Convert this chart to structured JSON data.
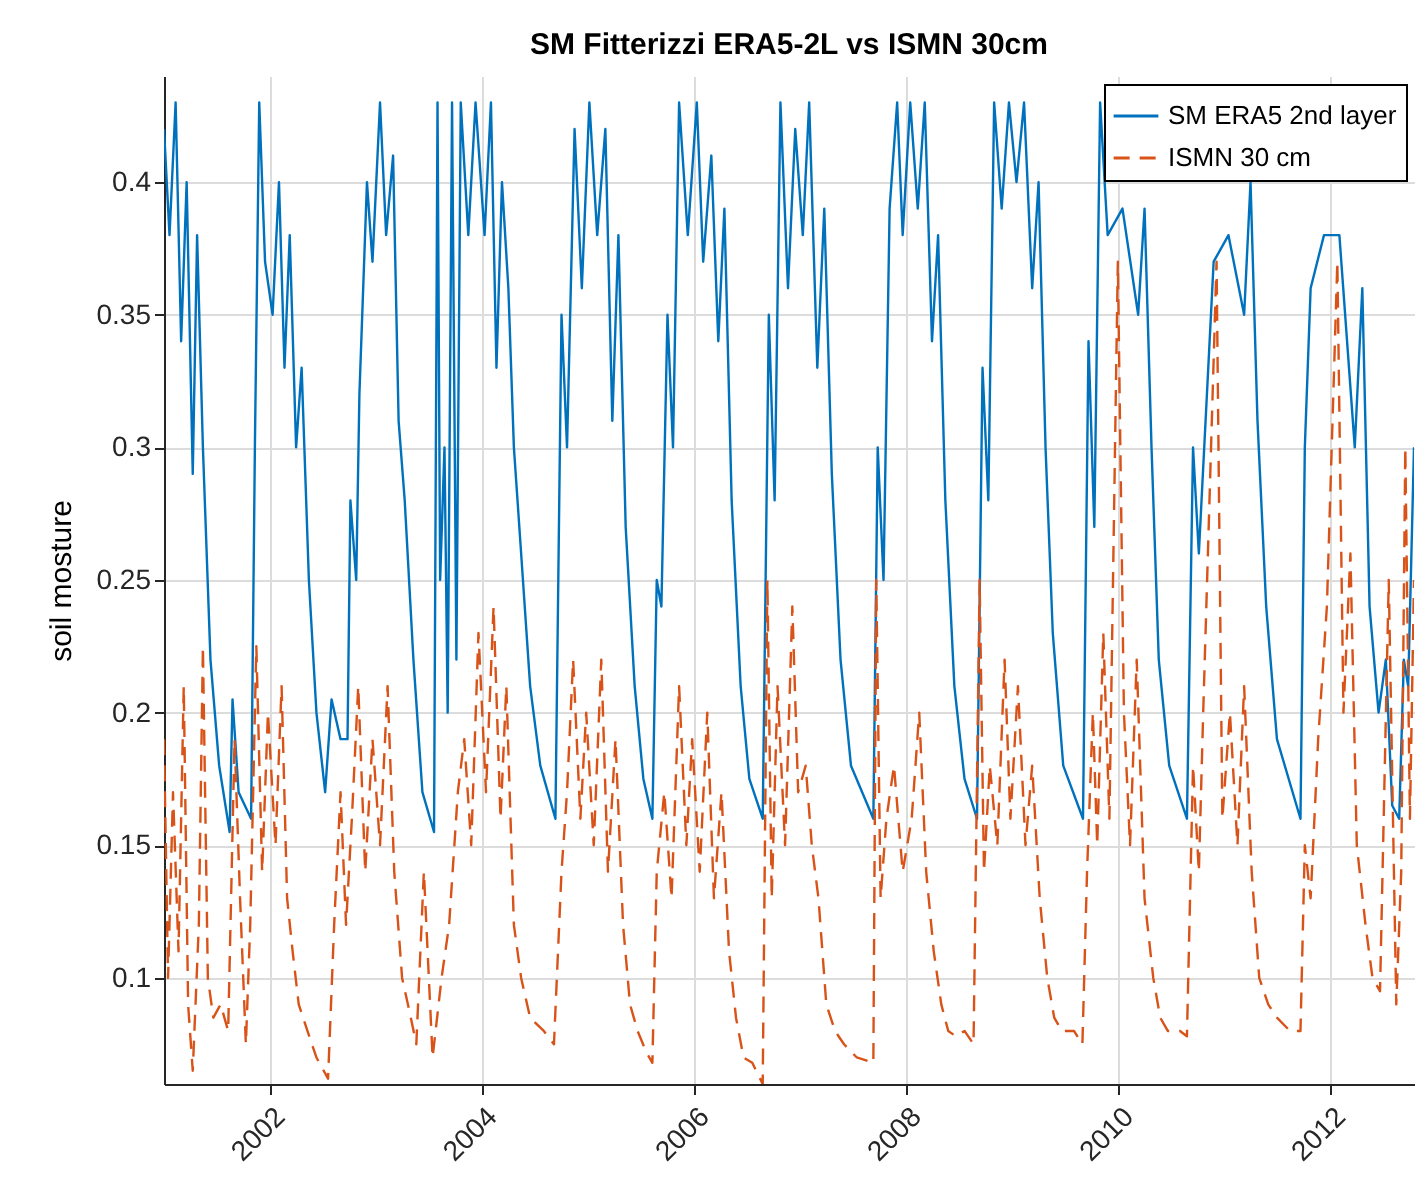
{
  "chart_data": {
    "type": "line",
    "title": "SM Fitterizzi ERA5-2L vs ISMN 30cm",
    "ylabel": "soil mosture",
    "xlim": [
      "2001-01-01",
      "2012-10-15"
    ],
    "xticks": [
      "2002",
      "2004",
      "2006",
      "2008",
      "2010",
      "2012"
    ],
    "ylim": [
      0.06,
      0.44
    ],
    "yticks": [
      0.1,
      0.15,
      0.2,
      0.25,
      0.3,
      0.35,
      0.4
    ],
    "grid": true,
    "legend": "top right",
    "series": [
      {
        "name": "SM ERA5 2nd layer",
        "color": "#0072bd",
        "line_style": "solid",
        "x": [
          "2001-01-01",
          "2001-01-20",
          "2001-02-10",
          "2001-03-01",
          "2001-03-20",
          "2001-04-10",
          "2001-04-25",
          "2001-05-15",
          "2001-06-10",
          "2001-07-10",
          "2001-08-15",
          "2001-08-25",
          "2001-09-15",
          "2001-10-28",
          "2001-11-10",
          "2001-11-25",
          "2001-12-15",
          "2002-01-10",
          "2002-02-01",
          "2002-02-20",
          "2002-03-10",
          "2002-04-01",
          "2002-04-20",
          "2002-05-15",
          "2002-06-10",
          "2002-07-10",
          "2002-08-01",
          "2002-09-01",
          "2002-09-25",
          "2002-10-05",
          "2002-10-25",
          "2002-11-05",
          "2002-12-01",
          "2002-12-20",
          "2003-01-15",
          "2003-02-05",
          "2003-03-01",
          "2003-03-20",
          "2003-04-10",
          "2003-05-10",
          "2003-06-10",
          "2003-07-20",
          "2003-08-01",
          "2003-08-10",
          "2003-08-25",
          "2003-09-05",
          "2003-09-20",
          "2003-10-05",
          "2003-10-20",
          "2003-11-15",
          "2003-12-10",
          "2004-01-10",
          "2004-02-01",
          "2004-02-20",
          "2004-03-10",
          "2004-04-01",
          "2004-04-20",
          "2004-05-15",
          "2004-06-15",
          "2004-07-20",
          "2004-09-10",
          "2004-10-01",
          "2004-10-20",
          "2004-11-15",
          "2004-12-10",
          "2005-01-05",
          "2005-02-01",
          "2005-03-01",
          "2005-03-25",
          "2005-04-15",
          "2005-05-10",
          "2005-06-10",
          "2005-07-10",
          "2005-08-10",
          "2005-08-25",
          "2005-09-10",
          "2005-10-01",
          "2005-10-20",
          "2005-11-10",
          "2005-12-10",
          "2006-01-10",
          "2006-02-01",
          "2006-03-01",
          "2006-03-25",
          "2006-04-15",
          "2006-05-10",
          "2006-06-10",
          "2006-07-10",
          "2006-08-25",
          "2006-09-15",
          "2006-10-05",
          "2006-10-25",
          "2006-11-20",
          "2006-12-15",
          "2007-01-10",
          "2007-02-01",
          "2007-03-01",
          "2007-03-25",
          "2007-04-20",
          "2007-05-20",
          "2007-06-25",
          "2007-09-10",
          "2007-09-25",
          "2007-10-15",
          "2007-11-05",
          "2007-12-01",
          "2007-12-20",
          "2008-01-15",
          "2008-02-10",
          "2008-03-05",
          "2008-03-30",
          "2008-04-20",
          "2008-05-15",
          "2008-06-15",
          "2008-07-20",
          "2008-09-01",
          "2008-09-20",
          "2008-10-10",
          "2008-10-30",
          "2008-11-25",
          "2008-12-20",
          "2009-01-15",
          "2009-02-10",
          "2009-03-10",
          "2009-04-01",
          "2009-04-25",
          "2009-05-20",
          "2009-06-25",
          "2009-09-01",
          "2009-09-20",
          "2009-10-10",
          "2009-10-30",
          "2009-11-25",
          "2009-12-20",
          "2010-01-15",
          "2010-02-10",
          "2010-03-10",
          "2010-04-01",
          "2010-04-25",
          "2010-05-20",
          "2010-06-25",
          "2010-08-25",
          "2010-09-15",
          "2010-10-05",
          "2010-10-30",
          "2010-11-25",
          "2010-12-20",
          "2011-01-15",
          "2011-02-10",
          "2011-03-10",
          "2011-04-01",
          "2011-04-25",
          "2011-05-25",
          "2011-07-01",
          "2011-09-20",
          "2011-10-05",
          "2011-10-25",
          "2011-11-15",
          "2011-12-10",
          "2012-01-05",
          "2012-02-01",
          "2012-03-01",
          "2012-03-25",
          "2012-04-20",
          "2012-05-15",
          "2012-06-15",
          "2012-07-10",
          "2012-08-01",
          "2012-08-25",
          "2012-09-10",
          "2012-09-25",
          "2012-10-15"
        ],
        "values": [
          0.42,
          0.38,
          0.43,
          0.34,
          0.4,
          0.29,
          0.38,
          0.3,
          0.22,
          0.18,
          0.155,
          0.205,
          0.17,
          0.16,
          0.3,
          0.43,
          0.37,
          0.35,
          0.4,
          0.33,
          0.38,
          0.3,
          0.33,
          0.25,
          0.2,
          0.17,
          0.205,
          0.19,
          0.19,
          0.28,
          0.25,
          0.32,
          0.4,
          0.37,
          0.43,
          0.38,
          0.41,
          0.31,
          0.28,
          0.22,
          0.17,
          0.155,
          0.43,
          0.25,
          0.3,
          0.2,
          0.43,
          0.22,
          0.43,
          0.38,
          0.43,
          0.38,
          0.43,
          0.33,
          0.4,
          0.36,
          0.3,
          0.26,
          0.21,
          0.18,
          0.16,
          0.35,
          0.3,
          0.42,
          0.36,
          0.43,
          0.38,
          0.42,
          0.31,
          0.38,
          0.27,
          0.21,
          0.175,
          0.16,
          0.25,
          0.24,
          0.35,
          0.3,
          0.43,
          0.38,
          0.43,
          0.37,
          0.41,
          0.34,
          0.39,
          0.28,
          0.21,
          0.175,
          0.16,
          0.35,
          0.28,
          0.43,
          0.36,
          0.42,
          0.38,
          0.43,
          0.33,
          0.39,
          0.29,
          0.22,
          0.18,
          0.16,
          0.3,
          0.25,
          0.39,
          0.43,
          0.38,
          0.43,
          0.39,
          0.43,
          0.34,
          0.38,
          0.28,
          0.21,
          0.175,
          0.16,
          0.33,
          0.28,
          0.43,
          0.39,
          0.43,
          0.4,
          0.43,
          0.36,
          0.4,
          0.3,
          0.23,
          0.18,
          0.16,
          0.34,
          0.27,
          0.43,
          0.38,
          null,
          0.39,
          null,
          0.35,
          0.39,
          0.3,
          0.22,
          0.18,
          0.16,
          0.3,
          0.26,
          null,
          0.37,
          null,
          0.38,
          null,
          0.35,
          0.4,
          0.31,
          0.24,
          0.19,
          0.16,
          0.3,
          0.36,
          null,
          0.38,
          null,
          0.38,
          null,
          0.3,
          0.36,
          0.24,
          0.2,
          0.22,
          0.165,
          0.16,
          0.22,
          0.21,
          0.3
        ]
      },
      {
        "name": "ISMN 30 cm",
        "color": "#d95319",
        "line_style": "dashed",
        "x": [
          "2001-01-01",
          "2001-01-15",
          "2001-02-01",
          "2001-02-20",
          "2001-03-10",
          "2001-03-25",
          "2001-04-10",
          "2001-05-01",
          "2001-05-15",
          "2001-06-01",
          "2001-06-20",
          "2001-07-15",
          "2001-08-10",
          "2001-09-01",
          "2001-09-20",
          "2001-10-10",
          "2001-10-25",
          "2001-11-15",
          "2001-12-05",
          "2001-12-25",
          "2002-01-20",
          "2002-02-10",
          "2002-03-01",
          "2002-03-20",
          "2002-04-10",
          "2002-05-10",
          "2002-06-10",
          "2002-07-20",
          "2002-08-10",
          "2002-09-01",
          "2002-09-20",
          "2002-10-10",
          "2002-11-01",
          "2002-11-25",
          "2002-12-20",
          "2003-01-15",
          "2003-02-10",
          "2003-03-05",
          "2003-04-01",
          "2003-05-01",
          "2003-05-20",
          "2003-06-15",
          "2003-07-15",
          "2003-08-15",
          "2003-09-10",
          "2003-10-10",
          "2003-11-01",
          "2003-11-25",
          "2003-12-20",
          "2004-01-15",
          "2004-02-10",
          "2004-03-05",
          "2004-03-25",
          "2004-04-20",
          "2004-05-15",
          "2004-06-15",
          "2004-08-01",
          "2004-09-05",
          "2004-10-01",
          "2004-10-20",
          "2004-11-10",
          "2004-12-05",
          "2004-12-25",
          "2005-01-20",
          "2005-02-15",
          "2005-03-10",
          "2005-04-05",
          "2005-05-01",
          "2005-05-25",
          "2005-06-20",
          "2005-07-20",
          "2005-08-10",
          "2005-08-25",
          "2005-09-20",
          "2005-10-15",
          "2005-11-10",
          "2005-12-05",
          "2005-12-25",
          "2006-01-20",
          "2006-02-15",
          "2006-03-10",
          "2006-04-05",
          "2006-05-01",
          "2006-05-25",
          "2006-06-20",
          "2006-07-20",
          "2006-08-25",
          "2006-09-10",
          "2006-09-25",
          "2006-10-15",
          "2006-11-10",
          "2006-12-05",
          "2006-12-25",
          "2007-01-20",
          "2007-02-10",
          "2007-03-05",
          "2007-04-01",
          "2007-05-01",
          "2007-06-01",
          "2007-07-15",
          "2007-09-10",
          "2007-09-20",
          "2007-10-05",
          "2007-10-25",
          "2007-11-20",
          "2007-12-20",
          "2008-01-20",
          "2008-02-15",
          "2008-03-10",
          "2008-04-05",
          "2008-05-01",
          "2008-05-25",
          "2008-06-20",
          "2008-07-20",
          "2008-08-20",
          "2008-09-10",
          "2008-09-25",
          "2008-10-15",
          "2008-11-10",
          "2008-12-05",
          "2008-12-25",
          "2009-01-20",
          "2009-02-15",
          "2009-03-10",
          "2009-04-05",
          "2009-05-01",
          "2009-05-25",
          "2009-06-20",
          "2009-08-01",
          "2009-08-30",
          "2009-09-15",
          "2009-10-05",
          "2009-10-20",
          "2009-11-10",
          "2009-12-01",
          "2009-12-30",
          "2010-01-20",
          "2010-02-10",
          "2010-03-05",
          "2010-04-01",
          "2010-05-01",
          "2010-05-25",
          "2010-06-20",
          "2010-08-01",
          "2010-08-25",
          "2010-09-15",
          "2010-10-05",
          "2010-10-20",
          "2010-12-05",
          "2010-12-25",
          "2011-01-20",
          "2011-02-15",
          "2011-03-10",
          "2011-04-05",
          "2011-05-01",
          "2011-06-01",
          "2011-07-01",
          "2011-08-15",
          "2011-09-20",
          "2011-10-05",
          "2011-10-25",
          "2011-11-20",
          "2011-12-20",
          "2012-01-25",
          "2012-02-15",
          "2012-03-10",
          "2012-04-01",
          "2012-05-01",
          "2012-05-25",
          "2012-06-20",
          "2012-07-20",
          "2012-08-15",
          "2012-09-01",
          "2012-09-15",
          "2012-10-01",
          "2012-10-15"
        ],
        "values": [
          0.19,
          0.1,
          0.17,
          0.11,
          0.21,
          0.09,
          0.065,
          0.12,
          0.225,
          0.1,
          0.085,
          0.09,
          0.08,
          0.19,
          0.13,
          0.075,
          0.12,
          0.225,
          0.14,
          0.2,
          0.15,
          0.21,
          0.13,
          0.11,
          0.09,
          0.08,
          0.07,
          0.062,
          0.12,
          0.17,
          0.12,
          0.16,
          0.21,
          0.14,
          0.19,
          0.15,
          0.21,
          0.14,
          0.1,
          0.085,
          0.075,
          0.14,
          0.07,
          0.1,
          0.12,
          0.17,
          0.19,
          0.15,
          0.23,
          0.17,
          0.24,
          0.16,
          0.21,
          0.12,
          0.1,
          0.085,
          0.08,
          0.075,
          0.14,
          0.17,
          0.22,
          0.16,
          0.2,
          0.15,
          0.22,
          0.14,
          0.19,
          0.12,
          0.09,
          0.08,
          0.072,
          0.068,
          0.14,
          0.17,
          0.13,
          0.21,
          0.15,
          0.19,
          0.14,
          0.2,
          0.13,
          0.17,
          0.11,
          0.085,
          0.07,
          0.068,
          0.06,
          0.25,
          0.13,
          0.21,
          0.15,
          0.24,
          0.17,
          0.18,
          0.15,
          0.13,
          0.09,
          0.08,
          0.075,
          0.07,
          0.068,
          0.25,
          0.13,
          0.16,
          0.18,
          0.14,
          0.16,
          0.2,
          0.14,
          0.11,
          0.09,
          0.08,
          0.078,
          0.08,
          0.075,
          0.25,
          0.14,
          0.18,
          0.15,
          0.22,
          0.16,
          0.21,
          0.15,
          0.18,
          0.13,
          0.1,
          0.085,
          0.08,
          0.08,
          0.075,
          0.14,
          0.2,
          0.15,
          0.23,
          0.16,
          0.37,
          0.2,
          0.15,
          0.22,
          0.13,
          0.1,
          0.085,
          0.08,
          0.08,
          0.078,
          0.18,
          0.14,
          0.2,
          0.37,
          0.16,
          0.2,
          0.15,
          0.21,
          0.14,
          0.1,
          0.09,
          0.085,
          0.08,
          0.08,
          0.15,
          0.13,
          0.19,
          0.24,
          0.37,
          0.2,
          0.26,
          0.15,
          0.12,
          0.1,
          0.095,
          0.25,
          0.09,
          0.14,
          0.3,
          0.16,
          0.25
        ]
      }
    ]
  }
}
